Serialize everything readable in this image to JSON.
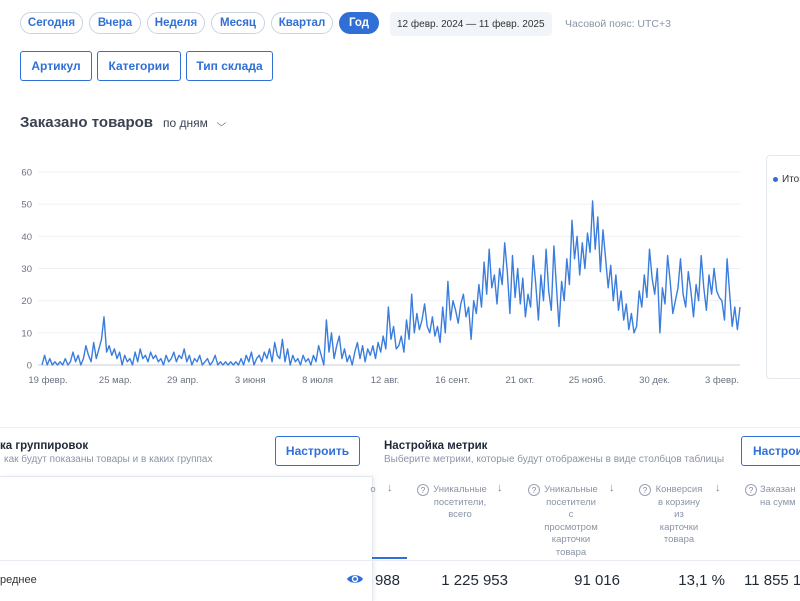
{
  "periods": [
    "Сегодня",
    "Вчера",
    "Неделя",
    "Месяц",
    "Квартал",
    "Год"
  ],
  "active_period": "Год",
  "date_range": "12 февр. 2024  —  11 февр. 2025",
  "timezone": "Часовой пояс: UTC+3",
  "filters": [
    "Артикул",
    "Категории",
    "Тип склада"
  ],
  "chart_section": {
    "title": "Заказано товаров",
    "group_by": "по дням"
  },
  "legend": {
    "label": "Итого"
  },
  "colors": {
    "accent": "#2f6fd6",
    "line": "#3b7ddd"
  },
  "chart_data": {
    "type": "line",
    "title": "Заказано товаров",
    "xlabel": "",
    "ylabel": "",
    "ylim": [
      0,
      60
    ],
    "yticks": [
      0,
      10,
      20,
      30,
      40,
      50,
      60
    ],
    "x_tick_labels": [
      "19 февр.",
      "25 мар.",
      "29 апр.",
      "3 июня",
      "8 июля",
      "12 авг.",
      "16 сент.",
      "21 окт.",
      "25 нояб.",
      "30 дек.",
      "3 февр."
    ],
    "x_range_days": [
      0,
      365
    ],
    "series": [
      {
        "name": "Итого",
        "points": [
          [
            0,
            0
          ],
          [
            2,
            3
          ],
          [
            4,
            0
          ],
          [
            6,
            2
          ],
          [
            8,
            0
          ],
          [
            10,
            1
          ],
          [
            12,
            0
          ],
          [
            14,
            1
          ],
          [
            16,
            0
          ],
          [
            18,
            2
          ],
          [
            20,
            0
          ],
          [
            22,
            1
          ],
          [
            24,
            4
          ],
          [
            26,
            1
          ],
          [
            28,
            3
          ],
          [
            30,
            0
          ],
          [
            32,
            2
          ],
          [
            34,
            6
          ],
          [
            36,
            3
          ],
          [
            38,
            1
          ],
          [
            40,
            7
          ],
          [
            42,
            2
          ],
          [
            44,
            5
          ],
          [
            46,
            8
          ],
          [
            48,
            15
          ],
          [
            50,
            4
          ],
          [
            52,
            6
          ],
          [
            54,
            3
          ],
          [
            56,
            5
          ],
          [
            58,
            2
          ],
          [
            60,
            4
          ],
          [
            62,
            0
          ],
          [
            64,
            3
          ],
          [
            66,
            1
          ],
          [
            68,
            2
          ],
          [
            70,
            0
          ],
          [
            72,
            4
          ],
          [
            74,
            1
          ],
          [
            76,
            5
          ],
          [
            78,
            2
          ],
          [
            80,
            3
          ],
          [
            82,
            1
          ],
          [
            84,
            4
          ],
          [
            86,
            2
          ],
          [
            88,
            3
          ],
          [
            90,
            1
          ],
          [
            92,
            2
          ],
          [
            94,
            0
          ],
          [
            96,
            3
          ],
          [
            98,
            1
          ],
          [
            100,
            2
          ],
          [
            102,
            4
          ],
          [
            104,
            1
          ],
          [
            106,
            3
          ],
          [
            108,
            2
          ],
          [
            110,
            5
          ],
          [
            112,
            1
          ],
          [
            114,
            3
          ],
          [
            116,
            0
          ],
          [
            118,
            2
          ],
          [
            120,
            1
          ],
          [
            122,
            3
          ],
          [
            124,
            0
          ],
          [
            126,
            1
          ],
          [
            128,
            2
          ],
          [
            130,
            0
          ],
          [
            132,
            1
          ],
          [
            134,
            3
          ],
          [
            136,
            0
          ],
          [
            138,
            1
          ],
          [
            140,
            0
          ],
          [
            142,
            1
          ],
          [
            144,
            0
          ],
          [
            146,
            1
          ],
          [
            148,
            0
          ],
          [
            150,
            1
          ],
          [
            152,
            0
          ],
          [
            154,
            2
          ],
          [
            156,
            0
          ],
          [
            158,
            3
          ],
          [
            160,
            1
          ],
          [
            162,
            4
          ],
          [
            164,
            0
          ],
          [
            166,
            2
          ],
          [
            168,
            3
          ],
          [
            170,
            1
          ],
          [
            172,
            4
          ],
          [
            174,
            2
          ],
          [
            176,
            5
          ],
          [
            178,
            1
          ],
          [
            180,
            7
          ],
          [
            182,
            3
          ],
          [
            184,
            2
          ],
          [
            186,
            8
          ],
          [
            188,
            1
          ],
          [
            190,
            5
          ],
          [
            192,
            0
          ],
          [
            194,
            3
          ],
          [
            196,
            1
          ],
          [
            198,
            2
          ],
          [
            200,
            0
          ],
          [
            202,
            3
          ],
          [
            204,
            1
          ],
          [
            206,
            2
          ],
          [
            208,
            0
          ],
          [
            210,
            3
          ],
          [
            212,
            1
          ],
          [
            214,
            6
          ],
          [
            216,
            3
          ],
          [
            218,
            0
          ],
          [
            220,
            14
          ],
          [
            222,
            4
          ],
          [
            224,
            10
          ],
          [
            226,
            2
          ],
          [
            228,
            6
          ],
          [
            230,
            9
          ],
          [
            232,
            2
          ],
          [
            234,
            5
          ],
          [
            236,
            1
          ],
          [
            238,
            3
          ],
          [
            240,
            0
          ],
          [
            242,
            4
          ],
          [
            244,
            7
          ],
          [
            246,
            2
          ],
          [
            248,
            6
          ],
          [
            250,
            1
          ],
          [
            252,
            5
          ],
          [
            254,
            3
          ],
          [
            256,
            6
          ],
          [
            258,
            2
          ],
          [
            260,
            7
          ],
          [
            262,
            4
          ],
          [
            264,
            9
          ],
          [
            266,
            5
          ],
          [
            268,
            18
          ],
          [
            270,
            8
          ],
          [
            272,
            12
          ],
          [
            274,
            5
          ],
          [
            276,
            6
          ],
          [
            278,
            9
          ],
          [
            280,
            4
          ],
          [
            282,
            14
          ],
          [
            284,
            8
          ],
          [
            286,
            22
          ],
          [
            288,
            10
          ],
          [
            290,
            16
          ],
          [
            292,
            11
          ],
          [
            294,
            14
          ],
          [
            296,
            19
          ],
          [
            298,
            12
          ],
          [
            300,
            10
          ],
          [
            302,
            15
          ],
          [
            304,
            9
          ],
          [
            306,
            12
          ],
          [
            308,
            7
          ],
          [
            310,
            18
          ],
          [
            312,
            10
          ],
          [
            314,
            26
          ],
          [
            316,
            14
          ],
          [
            318,
            20
          ],
          [
            320,
            17
          ],
          [
            322,
            13
          ],
          [
            324,
            19
          ],
          [
            326,
            22
          ],
          [
            328,
            15
          ],
          [
            330,
            18
          ],
          [
            332,
            8
          ],
          [
            334,
            20
          ],
          [
            336,
            16
          ],
          [
            338,
            25
          ],
          [
            340,
            18
          ],
          [
            342,
            32
          ],
          [
            344,
            22
          ],
          [
            346,
            36
          ],
          [
            348,
            24
          ],
          [
            350,
            28
          ],
          [
            352,
            19
          ],
          [
            354,
            30
          ],
          [
            356,
            25
          ],
          [
            358,
            38
          ],
          [
            360,
            29
          ],
          [
            362,
            16
          ],
          [
            364,
            34
          ],
          [
            366,
            21
          ],
          [
            368,
            30
          ],
          [
            370,
            19
          ],
          [
            372,
            27
          ],
          [
            374,
            15
          ],
          [
            376,
            22
          ],
          [
            378,
            18
          ],
          [
            380,
            34
          ],
          [
            382,
            25
          ],
          [
            384,
            14
          ],
          [
            386,
            28
          ],
          [
            388,
            20
          ],
          [
            390,
            36
          ],
          [
            392,
            23
          ],
          [
            394,
            17
          ],
          [
            396,
            37
          ],
          [
            398,
            24
          ],
          [
            400,
            12
          ],
          [
            402,
            26
          ],
          [
            404,
            20
          ],
          [
            406,
            33
          ],
          [
            408,
            25
          ],
          [
            410,
            45
          ],
          [
            412,
            33
          ],
          [
            414,
            40
          ],
          [
            416,
            28
          ],
          [
            418,
            38
          ],
          [
            420,
            30
          ],
          [
            422,
            41
          ],
          [
            424,
            35
          ],
          [
            426,
            51
          ],
          [
            428,
            36
          ],
          [
            430,
            46
          ],
          [
            432,
            29
          ],
          [
            434,
            42
          ],
          [
            436,
            33
          ],
          [
            438,
            24
          ],
          [
            440,
            31
          ],
          [
            442,
            20
          ],
          [
            444,
            28
          ],
          [
            446,
            17
          ],
          [
            448,
            23
          ],
          [
            450,
            14
          ],
          [
            452,
            19
          ],
          [
            454,
            11
          ],
          [
            456,
            16
          ],
          [
            458,
            10
          ],
          [
            460,
            12
          ],
          [
            462,
            23
          ],
          [
            464,
            18
          ],
          [
            466,
            28
          ],
          [
            468,
            21
          ],
          [
            470,
            36
          ],
          [
            472,
            27
          ],
          [
            474,
            22
          ],
          [
            476,
            30
          ],
          [
            478,
            10
          ],
          [
            480,
            24
          ],
          [
            482,
            19
          ],
          [
            484,
            34
          ],
          [
            486,
            26
          ],
          [
            488,
            16
          ],
          [
            490,
            20
          ],
          [
            492,
            24
          ],
          [
            494,
            33
          ],
          [
            496,
            22
          ],
          [
            498,
            18
          ],
          [
            500,
            29
          ],
          [
            502,
            23
          ],
          [
            504,
            15
          ],
          [
            506,
            25
          ],
          [
            508,
            20
          ],
          [
            510,
            34
          ],
          [
            512,
            24
          ],
          [
            514,
            17
          ],
          [
            516,
            28
          ],
          [
            518,
            22
          ],
          [
            520,
            30
          ],
          [
            522,
            23
          ],
          [
            524,
            21
          ],
          [
            526,
            20
          ],
          [
            528,
            14
          ],
          [
            530,
            33
          ],
          [
            532,
            22
          ],
          [
            534,
            12
          ],
          [
            536,
            18
          ],
          [
            538,
            11
          ],
          [
            540,
            18
          ]
        ]
      }
    ]
  },
  "grouping": {
    "title": "ка группировок",
    "subtitle": "как будут показаны товары и в каких группах",
    "button": "Настроить"
  },
  "metrics": {
    "title": "Настройка метрик",
    "subtitle": "Выберите метрики, которые будут отображены в виде столбцов таблицы",
    "button": "Настрои"
  },
  "table": {
    "row_label": "реднее",
    "columns": [
      {
        "head": [
          "о"
        ],
        "value": "988"
      },
      {
        "head": [
          "Уникальные",
          "посетители,",
          "всего"
        ],
        "value": "1 225 953"
      },
      {
        "head": [
          "Уникальные",
          "посетители",
          "с",
          "просмотром",
          "карточки",
          "товара"
        ],
        "value": "91 016"
      },
      {
        "head": [
          "Конверсия",
          "в корзину",
          "из",
          "карточки",
          "товара"
        ],
        "value": "13,1 %"
      },
      {
        "head": [
          "Заказан",
          "на сумм"
        ],
        "value": "11 855 1"
      }
    ]
  }
}
